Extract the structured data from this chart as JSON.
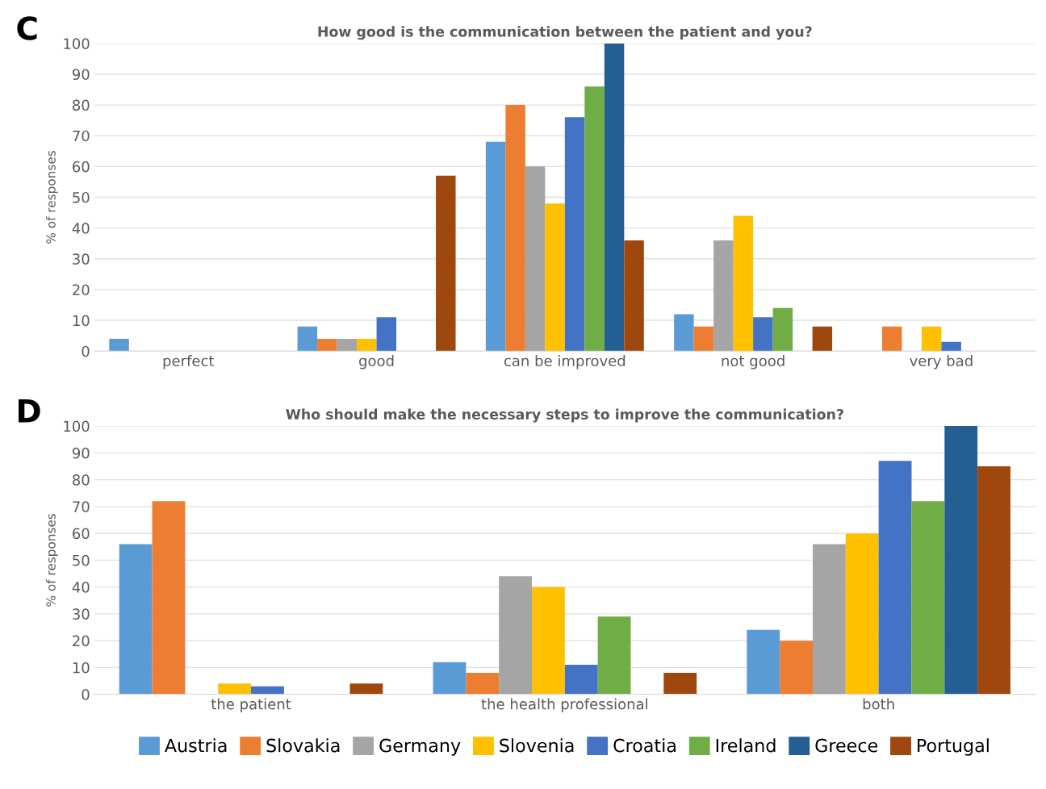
{
  "chart_data": [
    {
      "type": "bar",
      "title": "How good is the communication between the patient and you?",
      "ylabel": "% of responses",
      "annotations": [
        "C"
      ],
      "categories": [
        "perfect",
        "good",
        "can be improved",
        "not good",
        "very bad"
      ],
      "series": [
        {
          "color": "#5b9bd5",
          "values": [
            4,
            8,
            68,
            12,
            0
          ]
        },
        {
          "color": "#ed7d31",
          "values": [
            0,
            4,
            80,
            8,
            8
          ]
        },
        {
          "color": "#a5a5a5",
          "values": [
            0,
            4,
            60,
            36,
            0
          ]
        },
        {
          "color": "#ffc000",
          "values": [
            0,
            4,
            48,
            44,
            8
          ]
        },
        {
          "color": "#4472c4",
          "values": [
            0,
            11,
            76,
            11,
            3
          ]
        },
        {
          "color": "#70ad47",
          "values": [
            0,
            0,
            86,
            14,
            0
          ]
        },
        {
          "color": "#255e91",
          "values": [
            0,
            0,
            100,
            0,
            0
          ]
        },
        {
          "color": "#9e480e",
          "values": [
            0,
            57,
            36,
            8,
            0
          ]
        }
      ],
      "ylim": [
        0,
        100
      ],
      "yticks": [
        0,
        10,
        20,
        30,
        40,
        50,
        60,
        70,
        80,
        90,
        100
      ],
      "grid": "y"
    },
    {
      "type": "bar",
      "title": "Who should make the necessary steps to improve the communication?",
      "ylabel": "% of responses",
      "annotations": [
        "D"
      ],
      "categories": [
        "the patient",
        "the health professional",
        "both"
      ],
      "series": [
        {
          "name": "Austria",
          "color": "#5b9bd5",
          "values": [
            56,
            12,
            24
          ]
        },
        {
          "name": "Slovakia",
          "color": "#ed7d31",
          "values": [
            72,
            8,
            20
          ]
        },
        {
          "name": "Germany",
          "color": "#a5a5a5",
          "values": [
            0,
            44,
            56
          ]
        },
        {
          "name": "Slovenia",
          "color": "#ffc000",
          "values": [
            4,
            40,
            60
          ]
        },
        {
          "name": "Croatia",
          "color": "#4472c4",
          "values": [
            3,
            11,
            87
          ]
        },
        {
          "name": "Ireland",
          "color": "#70ad47",
          "values": [
            0,
            29,
            72
          ]
        },
        {
          "name": "Greece",
          "color": "#255e91",
          "values": [
            0,
            0,
            100
          ]
        },
        {
          "name": "Portugal",
          "color": "#9e480e",
          "values": [
            4,
            8,
            85
          ]
        }
      ],
      "ylim": [
        0,
        100
      ],
      "yticks": [
        0,
        10,
        20,
        30,
        40,
        50,
        60,
        70,
        80,
        90,
        100
      ],
      "grid": "y",
      "legend": "bottom"
    }
  ]
}
